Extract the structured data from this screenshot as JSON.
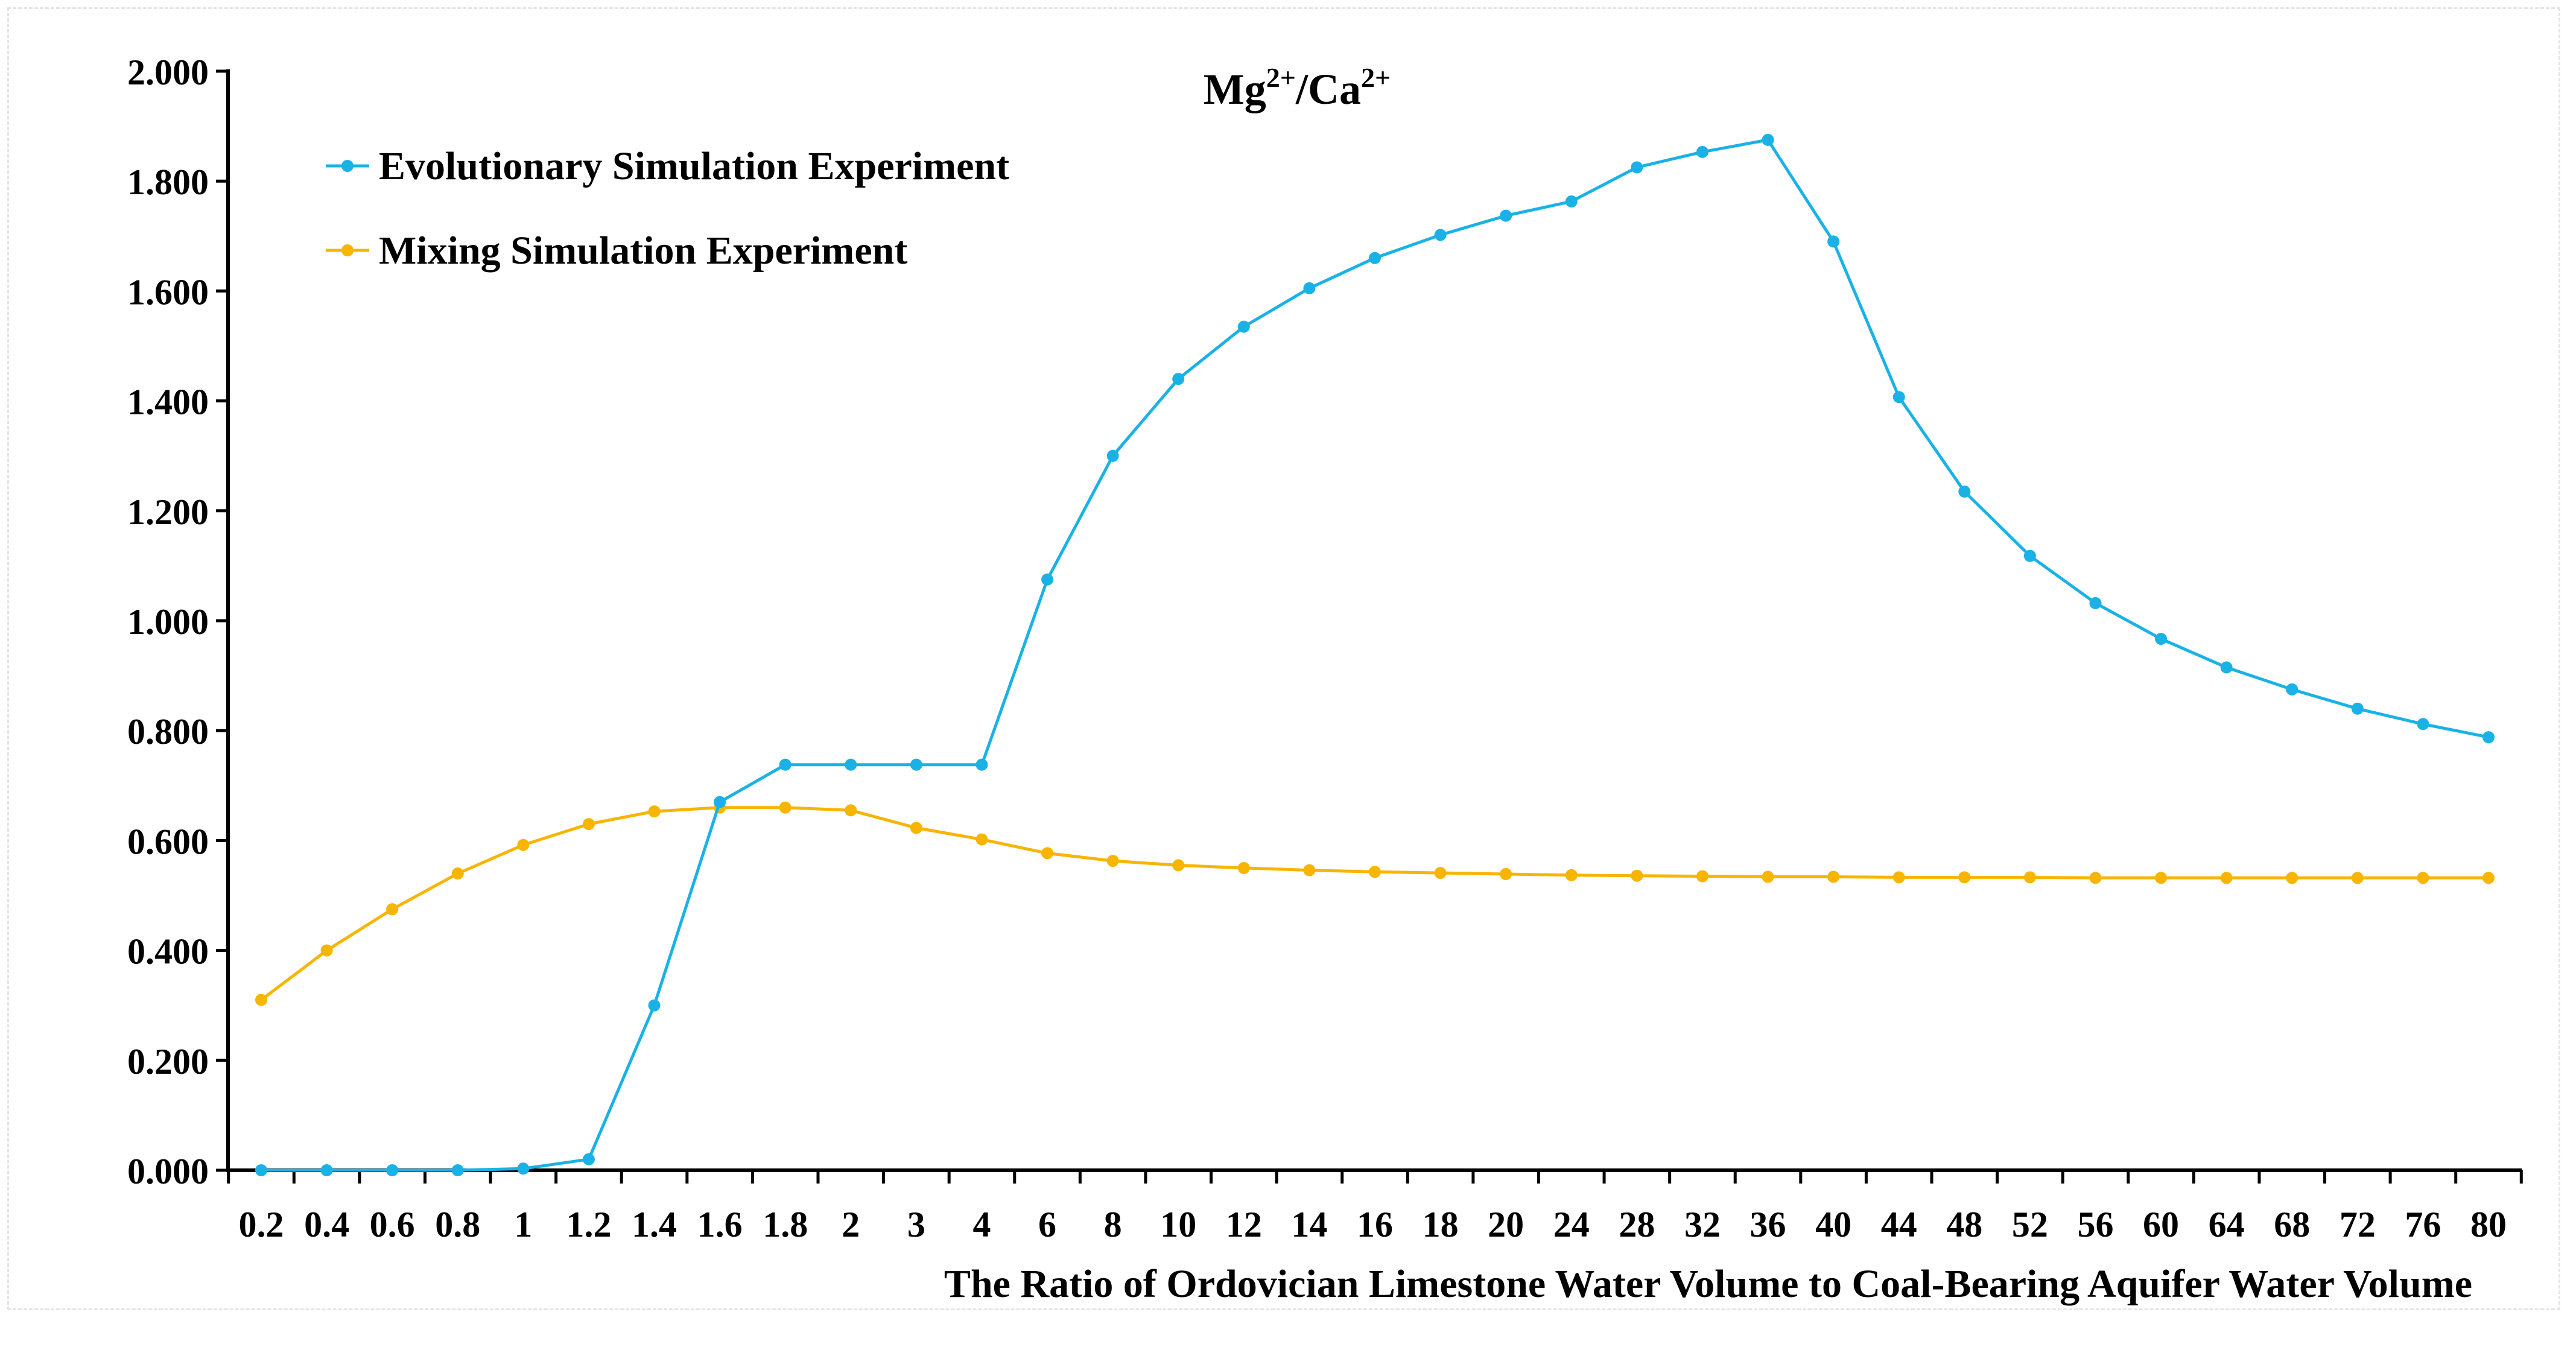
{
  "chart_data": {
    "type": "line",
    "title": "Mg²⁺/Ca²⁺",
    "title_parts": {
      "base1": "Mg",
      "sup1": "2+",
      "sep": "/Ca",
      "sup2": "2+"
    },
    "xlabel": "The Ratio of Ordovician Limestone Water Volume to Coal-Bearing Aquifer Water Volume",
    "ylabel": "",
    "categories": [
      "0.2",
      "0.4",
      "0.6",
      "0.8",
      "1",
      "1.2",
      "1.4",
      "1.6",
      "1.8",
      "2",
      "3",
      "4",
      "6",
      "8",
      "10",
      "12",
      "14",
      "16",
      "18",
      "20",
      "24",
      "28",
      "32",
      "36",
      "40",
      "44",
      "48",
      "52",
      "56",
      "60",
      "64",
      "68",
      "72",
      "76",
      "80"
    ],
    "ylim": [
      0,
      2.0
    ],
    "yticks": [
      "0.000",
      "0.200",
      "0.400",
      "0.600",
      "0.800",
      "1.000",
      "1.200",
      "1.400",
      "1.600",
      "1.800",
      "2.000"
    ],
    "ytick_values": [
      0,
      0.2,
      0.4,
      0.6,
      0.8,
      1.0,
      1.2,
      1.4,
      1.6,
      1.8,
      2.0
    ],
    "grid": false,
    "legend_position": "top-left",
    "series": [
      {
        "name": "Evolutionary Simulation Experiment",
        "color": "#1AB2E6",
        "values": [
          0.0,
          0.0,
          0.0,
          0.0,
          0.003,
          0.02,
          0.3,
          0.67,
          0.738,
          0.738,
          0.738,
          0.738,
          1.075,
          1.3,
          1.44,
          1.535,
          1.605,
          1.66,
          1.702,
          1.737,
          1.763,
          1.825,
          1.853,
          1.875,
          1.69,
          1.407,
          1.235,
          1.118,
          1.032,
          0.967,
          0.915,
          0.875,
          0.84,
          0.812,
          0.788
        ]
      },
      {
        "name": "Mixing Simulation Experiment",
        "color": "#F7B500",
        "values": [
          0.31,
          0.4,
          0.475,
          0.54,
          0.592,
          0.63,
          0.653,
          0.66,
          0.66,
          0.655,
          0.623,
          0.602,
          0.577,
          0.563,
          0.555,
          0.55,
          0.546,
          0.543,
          0.541,
          0.539,
          0.537,
          0.536,
          0.535,
          0.534,
          0.534,
          0.533,
          0.533,
          0.533,
          0.532,
          0.532,
          0.532,
          0.532,
          0.532,
          0.532,
          0.532
        ]
      }
    ]
  }
}
